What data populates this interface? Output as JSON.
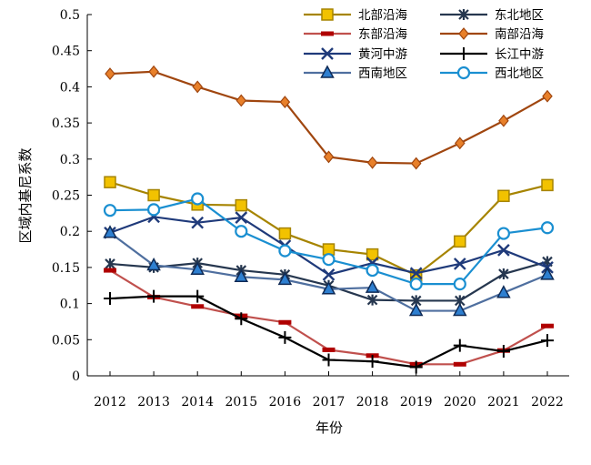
{
  "chart_data": {
    "type": "line",
    "title": "",
    "xlabel": "年份",
    "ylabel": "区域内基尼系数",
    "ylim": [
      0,
      0.5
    ],
    "y_ticks": [
      "0",
      "0.05",
      "0.1",
      "0.15",
      "0.2",
      "0.25",
      "0.3",
      "0.35",
      "0.4",
      "0.45",
      "0.5"
    ],
    "categories": [
      "2012",
      "2013",
      "2014",
      "2015",
      "2016",
      "2017",
      "2018",
      "2019",
      "2020",
      "2021",
      "2022"
    ],
    "grid": false,
    "legend_position": "top-right",
    "series": [
      {
        "name": "北部沿海",
        "color": "#a68400",
        "marker": "square",
        "values": [
          0.268,
          0.25,
          0.237,
          0.236,
          0.197,
          0.175,
          0.168,
          0.139,
          0.186,
          0.249,
          0.264
        ]
      },
      {
        "name": "东北地区",
        "color": "#26374f",
        "marker": "asterisk",
        "values": [
          0.155,
          0.15,
          0.156,
          0.146,
          0.14,
          0.125,
          0.105,
          0.104,
          0.104,
          0.141,
          0.158
        ]
      },
      {
        "name": "东部沿海",
        "color": "#c0504d",
        "marker": "dash",
        "values": [
          0.146,
          0.109,
          0.096,
          0.083,
          0.074,
          0.036,
          0.028,
          0.016,
          0.016,
          0.035,
          0.069
        ]
      },
      {
        "name": "南部沿海",
        "color": "#a0460f",
        "marker": "diamond",
        "values": [
          0.418,
          0.421,
          0.4,
          0.381,
          0.379,
          0.303,
          0.295,
          0.294,
          0.322,
          0.353,
          0.387
        ]
      },
      {
        "name": "黄河中游",
        "color": "#1f3a7a",
        "marker": "x",
        "values": [
          0.198,
          0.22,
          0.212,
          0.219,
          0.18,
          0.14,
          0.156,
          0.142,
          0.155,
          0.174,
          0.15
        ]
      },
      {
        "name": "长江中游",
        "color": "#000000",
        "marker": "plus",
        "values": [
          0.107,
          0.11,
          0.11,
          0.079,
          0.053,
          0.022,
          0.02,
          0.012,
          0.042,
          0.034,
          0.049
        ]
      },
      {
        "name": "西南地区",
        "color": "#4f6f9f",
        "marker": "triangle",
        "values": [
          0.198,
          0.153,
          0.147,
          0.137,
          0.133,
          0.12,
          0.122,
          0.09,
          0.09,
          0.115,
          0.14
        ]
      },
      {
        "name": "西北地区",
        "color": "#1a8fd1",
        "marker": "circle",
        "values": [
          0.229,
          0.23,
          0.245,
          0.2,
          0.173,
          0.161,
          0.146,
          0.127,
          0.127,
          0.197,
          0.205
        ]
      }
    ]
  }
}
